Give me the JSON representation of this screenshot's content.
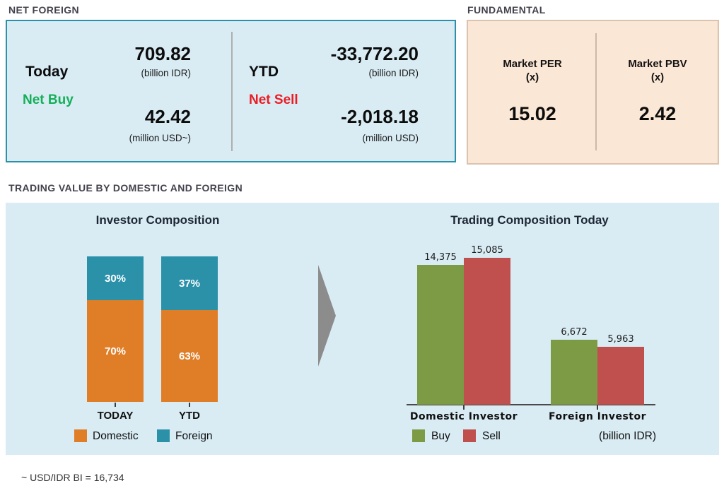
{
  "net_foreign": {
    "section_title": "NET FOREIGN",
    "today": {
      "label": "Today",
      "direction": "Net Buy",
      "direction_color": "#15af59",
      "value_idr": "709.82",
      "unit_idr": "(billion IDR)",
      "value_usd": "42.42",
      "unit_usd": "(million USD~)"
    },
    "ytd": {
      "label": "YTD",
      "direction": "Net Sell",
      "direction_color": "#ec1c24",
      "value_idr": "-33,772.20",
      "unit_idr": "(billion IDR)",
      "value_usd": "-2,018.18",
      "unit_usd": "(million USD)"
    }
  },
  "fundamental": {
    "section_title": "FUNDAMENTAL",
    "per": {
      "label": "Market PER",
      "unit": "(x)",
      "value": "15.02"
    },
    "pbv": {
      "label": "Market PBV",
      "unit": "(x)",
      "value": "2.42"
    }
  },
  "trading": {
    "section_title": "TRADING VALUE BY DOMESTIC AND FOREIGN",
    "footnote": "~ USD/IDR BI = 16,734",
    "arrow_color": "#8c8c8c"
  },
  "chart_data": [
    {
      "type": "bar",
      "subtype": "stacked-percent",
      "title": "Investor Composition",
      "categories": [
        "TODAY",
        "YTD"
      ],
      "series": [
        {
          "name": "Domestic",
          "color": "#e07e28",
          "values": [
            70,
            63
          ],
          "labels": [
            "70%",
            "63%"
          ]
        },
        {
          "name": "Foreign",
          "color": "#2b91a9",
          "values": [
            30,
            37
          ],
          "labels": [
            "30%",
            "37%"
          ]
        }
      ],
      "legend_position": "bottom",
      "grid": false
    },
    {
      "type": "bar",
      "subtype": "grouped",
      "title": "Trading Composition Today",
      "categories": [
        "Domestic Investor",
        "Foreign Investor"
      ],
      "series": [
        {
          "name": "Buy",
          "color": "#7d9a45",
          "values": [
            14375,
            6672
          ],
          "labels": [
            "14,375",
            "6,672"
          ]
        },
        {
          "name": "Sell",
          "color": "#c0504d",
          "values": [
            15085,
            5963
          ],
          "labels": [
            "15,085",
            "5,963"
          ]
        }
      ],
      "unit_note": "(billion IDR)",
      "legend_position": "bottom",
      "grid": false
    }
  ]
}
